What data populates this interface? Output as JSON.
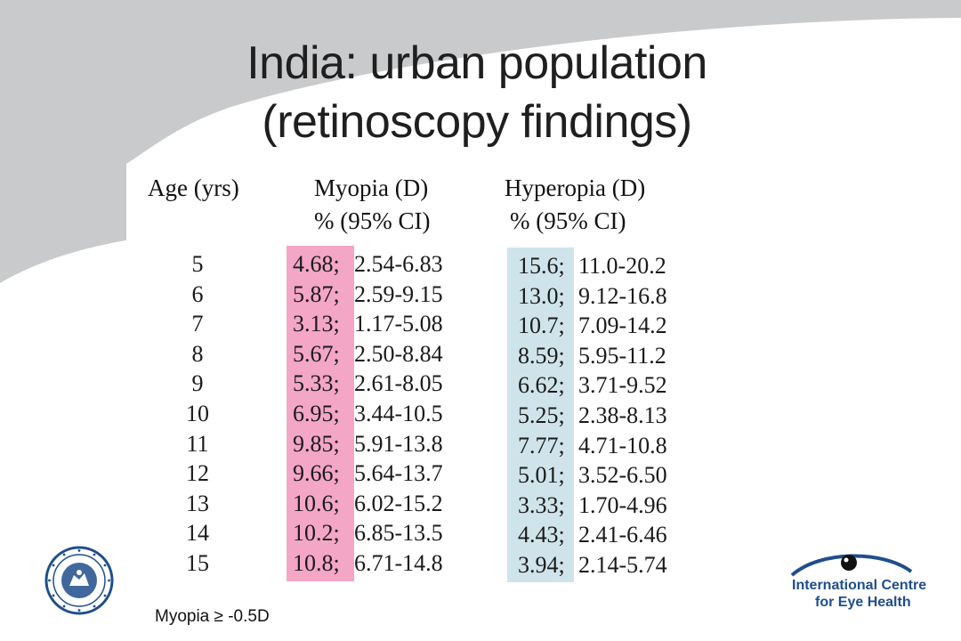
{
  "slide": {
    "title_line1": "India: urban population",
    "title_line2": "(retinoscopy findings)",
    "colors": {
      "background_swoosh": "#c9cacb",
      "myopia_band": "#f4a6c6",
      "hyperopia_band": "#cfe4ea",
      "logo_blue": "#1f4e8c"
    }
  },
  "table": {
    "headers": {
      "age": "Age (yrs)",
      "myopia": "Myopia (D)",
      "myopia_sub": "%  (95% CI)",
      "hyperopia": "Hyperopia (D)",
      "hyperopia_sub": "% (95% CI)"
    },
    "rows": [
      {
        "age": "5",
        "myopia_pct": "4.68;",
        "myopia_ci": "2.54-6.83",
        "hyper_pct": "15.6;",
        "hyper_ci": "11.0-20.2"
      },
      {
        "age": "6",
        "myopia_pct": "5.87;",
        "myopia_ci": "2.59-9.15",
        "hyper_pct": "13.0;",
        "hyper_ci": "9.12-16.8"
      },
      {
        "age": "7",
        "myopia_pct": "3.13;",
        "myopia_ci": "1.17-5.08",
        "hyper_pct": "10.7;",
        "hyper_ci": "7.09-14.2"
      },
      {
        "age": "8",
        "myopia_pct": "5.67;",
        "myopia_ci": "2.50-8.84",
        "hyper_pct": "8.59;",
        "hyper_ci": "5.95-11.2"
      },
      {
        "age": "9",
        "myopia_pct": "5.33;",
        "myopia_ci": "2.61-8.05",
        "hyper_pct": "6.62;",
        "hyper_ci": "3.71-9.52"
      },
      {
        "age": "10",
        "myopia_pct": "6.95;",
        "myopia_ci": "3.44-10.5",
        "hyper_pct": "5.25;",
        "hyper_ci": "2.38-8.13"
      },
      {
        "age": "11",
        "myopia_pct": "9.85;",
        "myopia_ci": "5.91-13.8",
        "hyper_pct": "7.77;",
        "hyper_ci": "4.71-10.8"
      },
      {
        "age": "12",
        "myopia_pct": "9.66;",
        "myopia_ci": "5.64-13.7",
        "hyper_pct": "5.01;",
        "hyper_ci": "3.52-6.50"
      },
      {
        "age": "13",
        "myopia_pct": "10.6;",
        "myopia_ci": "6.02-15.2",
        "hyper_pct": "3.33;",
        "hyper_ci": "1.70-4.96"
      },
      {
        "age": "14",
        "myopia_pct": "10.2;",
        "myopia_ci": "6.85-13.5",
        "hyper_pct": "4.43;",
        "hyper_ci": "2.41-6.46"
      },
      {
        "age": "15",
        "myopia_pct": "10.8;",
        "myopia_ci": "6.71-14.8",
        "hyper_pct": "3.94;",
        "hyper_ci": "2.14-5.74"
      }
    ]
  },
  "footnote": "Myopia ≥ -0.5D",
  "logos": {
    "left": {
      "icon": "lshtm-crest-icon"
    },
    "right": {
      "icon": "icfeh-eye-logo-icon",
      "line1": "International Centre",
      "line2": "for Eye Health"
    }
  }
}
